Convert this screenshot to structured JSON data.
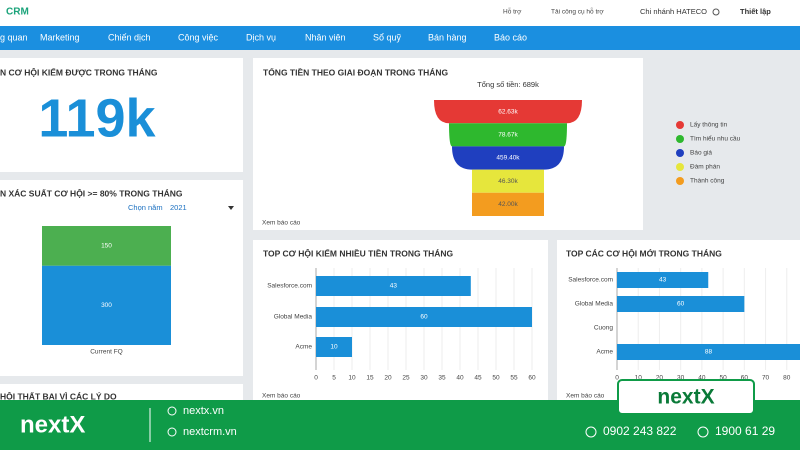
{
  "topbar": {
    "logo": "CRM",
    "links": [
      "Hỗ trợ",
      "Tải công cụ hỗ trợ",
      "Chi nhánh HATECO",
      "Thiết lập"
    ]
  },
  "nav": [
    "g quan",
    "Marketing",
    "Chiến dịch",
    "Công việc",
    "Dịch vụ",
    "Nhân viên",
    "Sổ quỹ",
    "Bán hàng",
    "Báo cáo"
  ],
  "kpi": {
    "title": "N CƠ HỘI KIẾM ĐƯỢC TRONG THÁNG",
    "value": "119k"
  },
  "lost_panel": {
    "title": "HỘI THẤT BẠI VÌ CÁC LÝ DO"
  },
  "chart_data": [
    {
      "type": "bar",
      "title": "N XÁC SUẤT CƠ HỘI >= 80% TRONG THÁNG",
      "select_label": "Chọn năm",
      "select_value": "2021",
      "categories": [
        "Current FQ"
      ],
      "stacked": true,
      "ylim": [
        0,
        450
      ],
      "series": [
        {
          "color": "#1a8fd8",
          "values": [
            300
          ]
        },
        {
          "color": "#4caf50",
          "values": [
            150
          ]
        }
      ]
    },
    {
      "type": "funnel",
      "title": "TỔNG TIỀN THEO GIAI ĐOẠN TRONG THÁNG",
      "subtitle": "Tổng số tiền: 689k",
      "categories": [
        "Lấy thông tin",
        "Tìm hiểu nhu cầu",
        "Báo giá",
        "Đàm phán",
        "Thành công"
      ],
      "values": [
        62.63,
        78.67,
        459.4,
        46.3,
        42
      ],
      "value_labels": [
        "62.63k",
        "78.67k",
        "459.40k",
        "46.30k",
        "42.00k"
      ],
      "colors": [
        "#e53935",
        "#2eb82e",
        "#1f3fbf",
        "#e6e63c",
        "#f39c1f"
      ],
      "link": "Xem báo cáo"
    },
    {
      "type": "hbar",
      "title": "TOP CƠ HỘI KIẾM NHIỀU TIỀN TRONG THÁNG",
      "categories": [
        "Salesforce.com",
        "Global Media",
        "Acme"
      ],
      "values": [
        43,
        60,
        10
      ],
      "color": "#1a8fd8",
      "xlim": [
        0,
        60
      ],
      "xticks": [
        0,
        5,
        10,
        15,
        20,
        25,
        30,
        35,
        40,
        45,
        50,
        55,
        60
      ],
      "grid": true,
      "link": "Xem báo cáo"
    },
    {
      "type": "hbar",
      "title": "TOP CÁC CƠ HỘI MỚI TRONG THÁNG",
      "categories": [
        "Salesforce.com",
        "Global Media",
        "Cuong",
        "Acme"
      ],
      "values": [
        43,
        60,
        null,
        88
      ],
      "color": "#1a8fd8",
      "xlim": [
        0,
        90
      ],
      "xticks": [
        0,
        10,
        20,
        30,
        40,
        50,
        60,
        70,
        80
      ],
      "grid": true,
      "link": "Xem báo cáo"
    }
  ],
  "footer": {
    "brand": "nextX",
    "sites": [
      "nextx.vn",
      "nextcrm.vn"
    ],
    "badge": "nextX",
    "phones": [
      "0902 243 822",
      "1900 61 29"
    ]
  }
}
